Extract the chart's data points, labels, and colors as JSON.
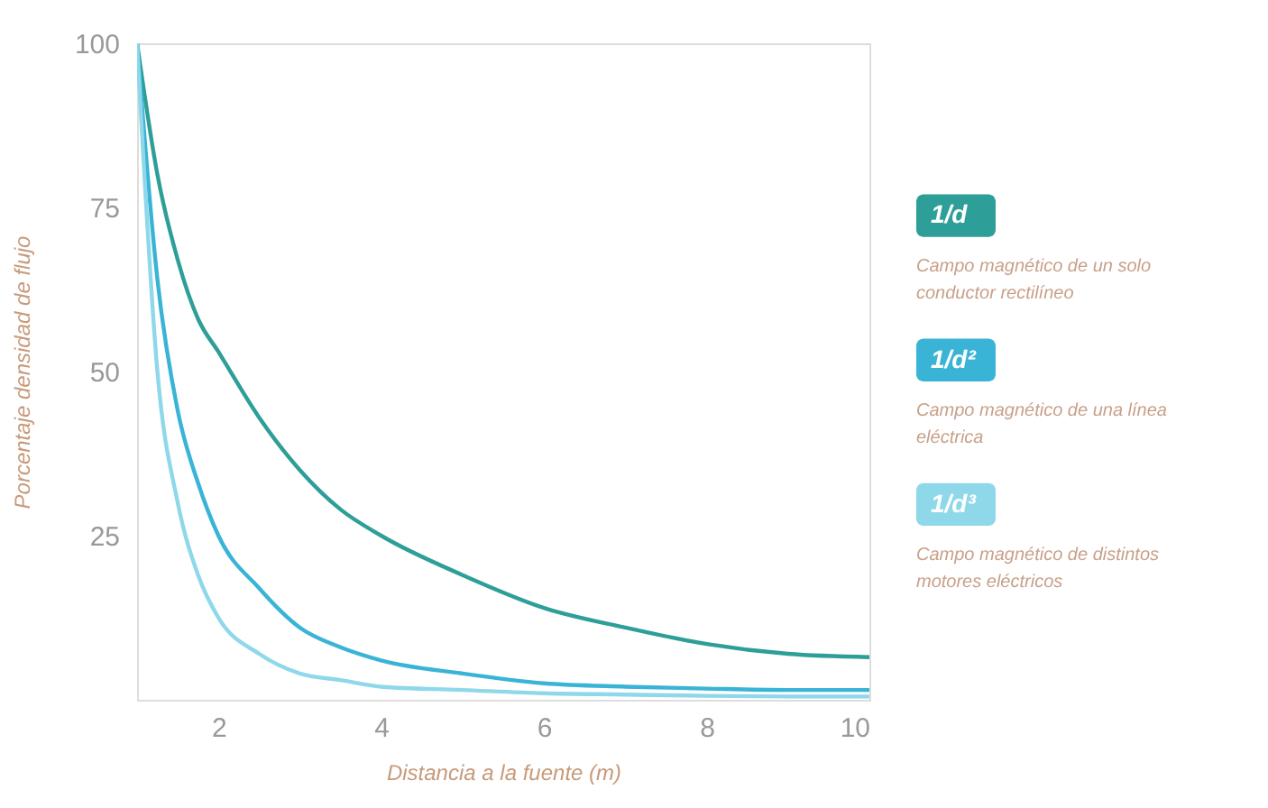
{
  "chart_data": {
    "type": "line",
    "xlabel": "Distancia a la fuente (m)",
    "ylabel": "Porcentaje densidad de flujo",
    "x": [
      1,
      1.25,
      1.5,
      1.75,
      2,
      2.5,
      3,
      3.5,
      4,
      5,
      6,
      7,
      8,
      9,
      10
    ],
    "series": [
      {
        "name": "1/d",
        "color": "#2e9e98",
        "values": [
          100,
          80,
          67,
          58,
          53,
          43,
          35,
          29,
          25,
          19,
          14,
          11,
          8.5,
          7,
          6.5
        ]
      },
      {
        "name": "1/d²",
        "color": "#3ab4d6",
        "values": [
          100,
          64,
          44,
          33,
          25,
          17,
          11,
          8,
          6,
          4,
          2.5,
          2,
          1.7,
          1.5,
          1.5
        ]
      },
      {
        "name": "1/d³",
        "color": "#8ed8ea",
        "values": [
          100,
          50,
          30,
          19,
          12.5,
          7,
          4,
          3,
          2,
          1.5,
          1,
          0.8,
          0.6,
          0.5,
          0.5
        ]
      }
    ],
    "annotations": [
      "Campo magnético de un solo conductor rectilíneo",
      "Campo magnético de una línea eléctrica",
      "Campo magnético de distintos motores eléctricos"
    ],
    "xlim": [
      1,
      10
    ],
    "xticks": [
      2,
      4,
      6,
      8,
      10
    ],
    "ylim": [
      0,
      100
    ],
    "yticks": [
      25,
      50,
      75,
      100
    ],
    "grid": false,
    "legend": "right",
    "marker": "none",
    "line_style": "solid"
  }
}
